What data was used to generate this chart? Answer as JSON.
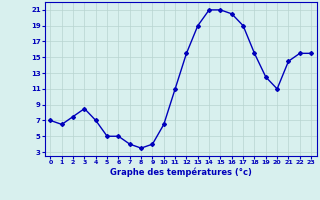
{
  "hours": [
    0,
    1,
    2,
    3,
    4,
    5,
    6,
    7,
    8,
    9,
    10,
    11,
    12,
    13,
    14,
    15,
    16,
    17,
    18,
    19,
    20,
    21,
    22,
    23
  ],
  "temps": [
    7,
    6.5,
    7.5,
    8.5,
    7,
    5,
    5,
    4,
    3.5,
    4,
    6.5,
    11,
    15.5,
    19,
    21,
    21,
    20.5,
    19,
    15.5,
    12.5,
    11,
    14.5,
    15.5,
    15.5
  ],
  "xlabel": "Graphe des températures (°c)",
  "ylim": [
    2.5,
    22
  ],
  "xlim": [
    -0.5,
    23.5
  ],
  "yticks": [
    3,
    5,
    7,
    9,
    11,
    13,
    15,
    17,
    19,
    21
  ],
  "xticks": [
    0,
    1,
    2,
    3,
    4,
    5,
    6,
    7,
    8,
    9,
    10,
    11,
    12,
    13,
    14,
    15,
    16,
    17,
    18,
    19,
    20,
    21,
    22,
    23
  ],
  "line_color": "#0000bb",
  "bg_color": "#d8f0ee",
  "grid_color": "#b8d4d0",
  "axes_color": "#0000bb",
  "tick_label_color": "#0000bb",
  "xlabel_color": "#0000bb",
  "marker": "D",
  "marker_size": 2.0,
  "line_width": 1.0
}
